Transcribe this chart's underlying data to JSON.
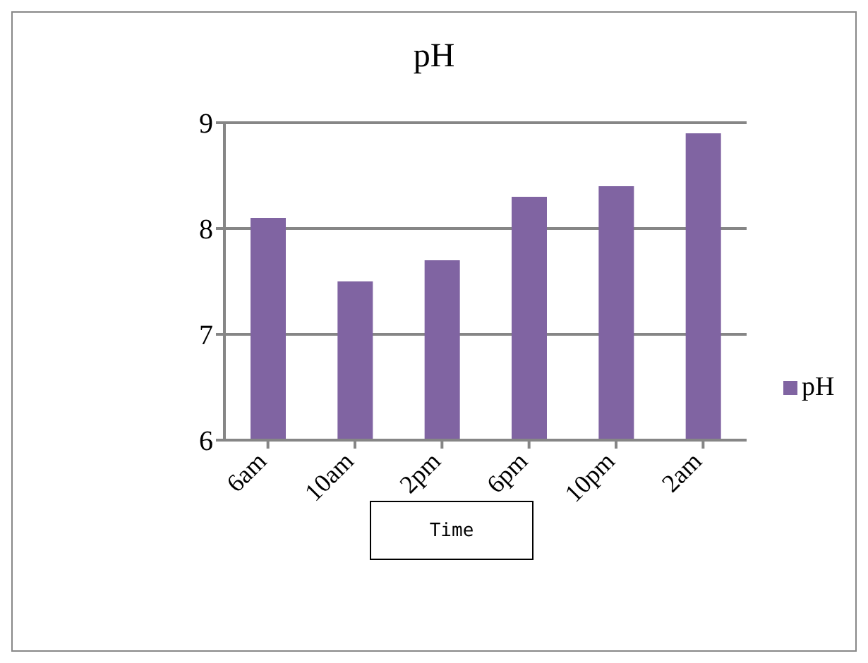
{
  "chart_data": {
    "type": "bar",
    "title": "pH",
    "xlabel": "Time",
    "categories": [
      "6am",
      "10am",
      "2pm",
      "6pm",
      "10pm",
      "2am"
    ],
    "series": [
      {
        "name": "pH",
        "color": "#8064a2",
        "values": [
          8.1,
          7.5,
          7.7,
          8.3,
          8.4,
          8.9
        ]
      }
    ],
    "ylim": [
      6,
      9
    ],
    "yticks": [
      6,
      7,
      8,
      9
    ],
    "grid": "y",
    "legend": "right"
  }
}
